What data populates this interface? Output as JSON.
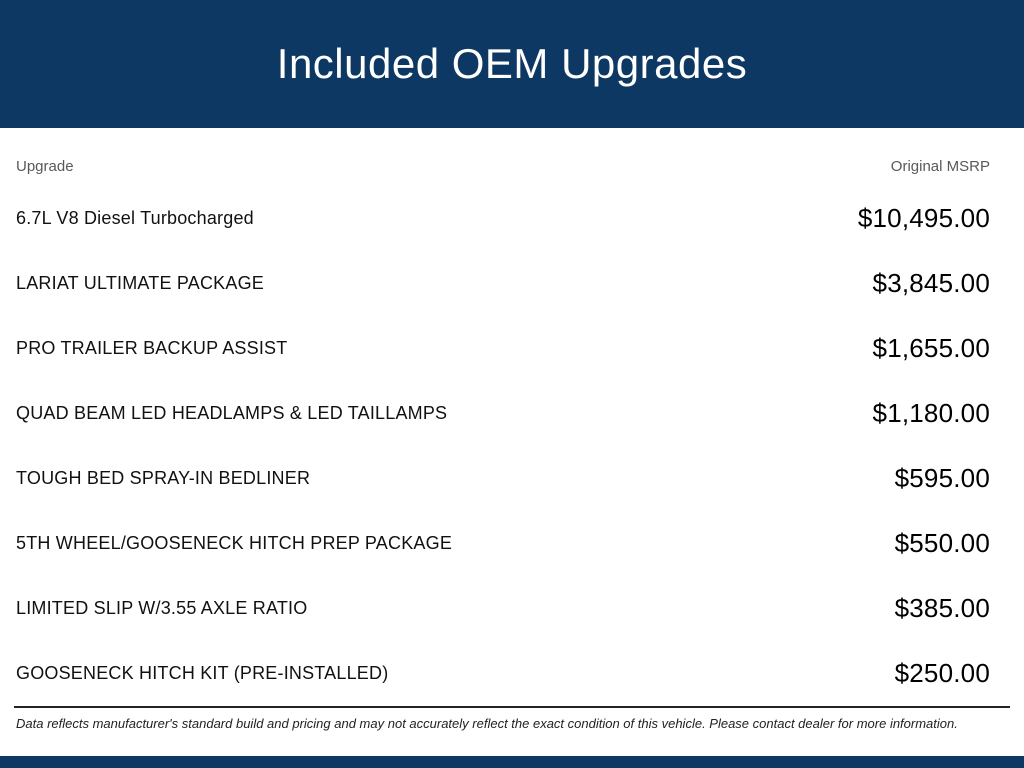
{
  "header": {
    "title": "Included OEM Upgrades"
  },
  "table": {
    "columns": {
      "upgrade": "Upgrade",
      "msrp": "Original MSRP"
    },
    "rows": [
      {
        "name": "6.7L V8 Diesel Turbocharged",
        "price": "$10,495.00"
      },
      {
        "name": "LARIAT ULTIMATE PACKAGE",
        "price": "$3,845.00"
      },
      {
        "name": "PRO TRAILER BACKUP ASSIST",
        "price": "$1,655.00"
      },
      {
        "name": "QUAD BEAM LED HEADLAMPS & LED TAILLAMPS",
        "price": "$1,180.00"
      },
      {
        "name": "TOUGH BED SPRAY-IN BEDLINER",
        "price": "$595.00"
      },
      {
        "name": "5TH WHEEL/GOOSENECK HITCH PREP PACKAGE",
        "price": "$550.00"
      },
      {
        "name": "LIMITED SLIP W/3.55 AXLE RATIO",
        "price": "$385.00"
      },
      {
        "name": "GOOSENECK HITCH KIT (PRE-INSTALLED)",
        "price": "$250.00"
      }
    ]
  },
  "footer": {
    "disclaimer": "Data reflects manufacturer's standard build and pricing and may not accurately reflect the exact condition of this vehicle. Please contact dealer for more information."
  },
  "colors": {
    "brand_navy": "#0d3863",
    "heading_gray": "#58595b"
  }
}
